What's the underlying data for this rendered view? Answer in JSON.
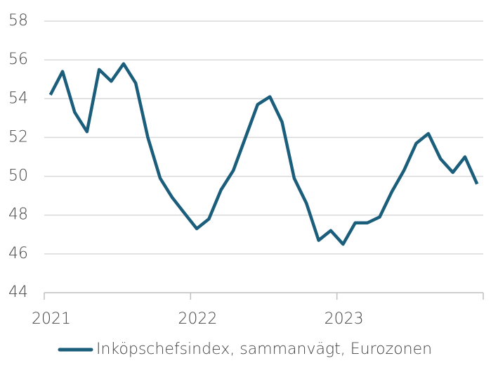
{
  "chart_data": {
    "type": "line",
    "x": [
      2021.042,
      2021.125,
      2021.208,
      2021.292,
      2021.375,
      2021.458,
      2021.542,
      2021.625,
      2021.708,
      2021.792,
      2021.875,
      2021.958,
      2022.042,
      2022.125,
      2022.208,
      2022.292,
      2022.375,
      2022.458,
      2022.542,
      2022.625,
      2022.708,
      2022.792,
      2022.875,
      2022.958,
      2023.042,
      2023.125,
      2023.208,
      2023.292,
      2023.375,
      2023.458,
      2023.542,
      2023.625,
      2023.708,
      2023.792,
      2023.875,
      2023.958
    ],
    "series": [
      {
        "name": "Inköpschefsindex, sammanvägt, Eurozonen",
        "color": "#1b5e7b",
        "values": [
          54.2,
          55.4,
          53.3,
          52.3,
          55.5,
          54.9,
          55.8,
          54.8,
          52.0,
          49.9,
          48.9,
          48.1,
          47.3,
          47.8,
          49.3,
          50.3,
          52.0,
          53.7,
          54.1,
          52.8,
          49.9,
          48.6,
          46.7,
          47.2,
          46.5,
          47.6,
          47.6,
          47.9,
          49.2,
          50.3,
          51.7,
          52.2,
          50.9,
          50.2,
          51.0,
          49.6
        ]
      }
    ],
    "xlim": [
      2021,
      2024
    ],
    "xticks": [
      2021,
      2022,
      2023
    ],
    "ylim": [
      44,
      58
    ],
    "yticks": [
      44,
      46,
      48,
      50,
      52,
      54,
      56,
      58
    ],
    "grid": true,
    "legend": "bottom"
  }
}
